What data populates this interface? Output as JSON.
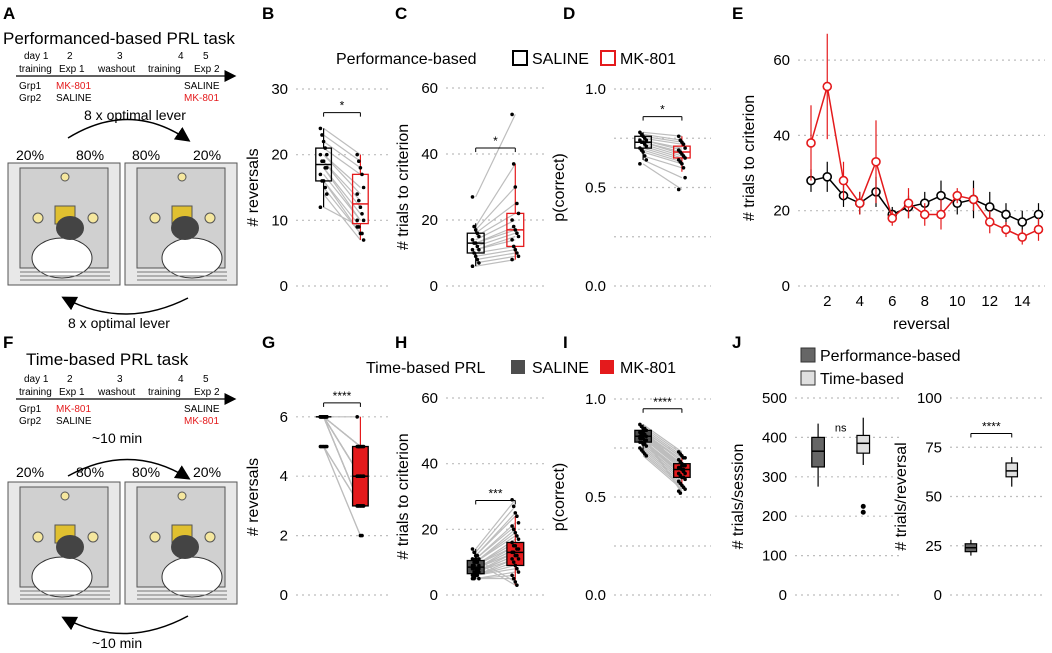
{
  "figure": {
    "panel_letters": [
      "A",
      "B",
      "C",
      "D",
      "E",
      "F",
      "G",
      "H",
      "I",
      "J"
    ],
    "panelA": {
      "title": "Performanced-based PRL task",
      "days": [
        "day 1",
        "2",
        "3",
        "4",
        "5"
      ],
      "phases": [
        "training",
        "Exp 1",
        "washout",
        "training",
        "Exp 2"
      ],
      "grp1": "Grp1",
      "grp2": "Grp2",
      "grp1_exp1": "MK-801",
      "grp2_exp1": "SALINE",
      "grp1_exp2": "SALINE",
      "grp2_exp2": "MK-801",
      "arrow_top": "8 x optimal lever",
      "arrow_bottom": "8 x optimal lever",
      "pct": [
        "20%",
        "80%",
        "80%",
        "20%"
      ]
    },
    "panelF": {
      "title": "Time-based PRL task",
      "days": [
        "day 1",
        "2",
        "3",
        "4",
        "5"
      ],
      "phases": [
        "training",
        "Exp 1",
        "washout",
        "training",
        "Exp 2"
      ],
      "grp1": "Grp1",
      "grp2": "Grp2",
      "grp1_exp1": "MK-801",
      "grp2_exp1": "SALINE",
      "grp1_exp2": "SALINE",
      "grp2_exp2": "MK-801",
      "arrow_top": "~10 min",
      "arrow_bottom": "~10 min",
      "pct": [
        "20%",
        "80%",
        "80%",
        "20%"
      ]
    },
    "legend_top": {
      "title": "Performance-based",
      "saline": "SALINE",
      "mk": "MK-801"
    },
    "legend_bottom": {
      "title": "Time-based PRL",
      "saline": "SALINE",
      "mk": "MK-801"
    },
    "legend_J": {
      "perf": "Performance-based",
      "time": "Time-based"
    }
  },
  "colors": {
    "saline": "#000000",
    "mk": "#e41a1c",
    "saline_fill": "#4d4d4d",
    "mk_fill": "#e41a1c",
    "grid": "#bdbdbd",
    "pairline": "#bdbdbd",
    "J_perf": "#666666",
    "J_time": "#e0e0e0"
  },
  "chart_data": [
    {
      "id": "B",
      "type": "box",
      "ylabel": "# reversals",
      "ylim": [
        0,
        30
      ],
      "yticks": [
        0,
        10,
        20,
        30
      ],
      "sig": "*",
      "filled": false,
      "saline": [
        24,
        23,
        22,
        21,
        20,
        20,
        19,
        19,
        18,
        18,
        17,
        16,
        16,
        15,
        14,
        12
      ],
      "mk": [
        20,
        19,
        18,
        17,
        15,
        14,
        13,
        12,
        11,
        10,
        10,
        9,
        8,
        8,
        7,
        9
      ],
      "box_saline": {
        "min": 12,
        "q1": 16,
        "median": 18.5,
        "q3": 21,
        "max": 24
      },
      "box_mk": {
        "min": 7,
        "q1": 9.5,
        "median": 12.5,
        "q3": 17,
        "max": 20
      }
    },
    {
      "id": "C",
      "type": "box",
      "ylabel": "# trials to criterion",
      "ylim": [
        0,
        60
      ],
      "yticks": [
        0,
        20,
        40,
        60
      ],
      "sig": "*",
      "filled": false,
      "saline": [
        27,
        18,
        17,
        16,
        15,
        14,
        13,
        13,
        12,
        11,
        11,
        10,
        9,
        8,
        7,
        6
      ],
      "mk": [
        52,
        37,
        30,
        25,
        22,
        20,
        18,
        17,
        16,
        15,
        14,
        12,
        11,
        10,
        9,
        8
      ],
      "box_saline": {
        "min": 6,
        "q1": 10,
        "median": 13,
        "q3": 16,
        "max": 19
      },
      "box_mk": {
        "min": 8,
        "q1": 12,
        "median": 17,
        "q3": 22,
        "max": 37
      }
    },
    {
      "id": "D",
      "type": "box",
      "ylabel": "p(correct)",
      "ylim": [
        0,
        1
      ],
      "yticks": [
        0.0,
        0.25,
        0.5,
        0.75,
        1.0
      ],
      "yticklabels": [
        "0.0",
        "",
        "0.5",
        "",
        "1.0"
      ],
      "sig": "*",
      "filled": false,
      "saline": [
        0.78,
        0.77,
        0.76,
        0.75,
        0.74,
        0.74,
        0.73,
        0.73,
        0.72,
        0.71,
        0.7,
        0.69,
        0.68,
        0.66,
        0.64,
        0.62
      ],
      "mk": [
        0.76,
        0.74,
        0.73,
        0.72,
        0.7,
        0.69,
        0.68,
        0.67,
        0.66,
        0.65,
        0.64,
        0.63,
        0.62,
        0.6,
        0.55,
        0.49
      ],
      "box_saline": {
        "min": 0.64,
        "q1": 0.7,
        "median": 0.73,
        "q3": 0.76,
        "max": 0.78
      },
      "box_mk": {
        "min": 0.58,
        "q1": 0.65,
        "median": 0.68,
        "q3": 0.71,
        "max": 0.76
      }
    },
    {
      "id": "E",
      "type": "line",
      "xlabel": "reversal",
      "ylabel": "# trials to criterion",
      "ylim": [
        0,
        68
      ],
      "yticks": [
        0,
        20,
        40,
        60
      ],
      "x": [
        1,
        2,
        3,
        4,
        5,
        6,
        7,
        8,
        9,
        10,
        11,
        12,
        13,
        14,
        15
      ],
      "xticks": [
        2,
        4,
        6,
        8,
        10,
        12,
        14
      ],
      "series": [
        {
          "name": "SALINE",
          "values": [
            28,
            29,
            24,
            22,
            25,
            19,
            21,
            22,
            24,
            22,
            23,
            21,
            19,
            17,
            19
          ],
          "err": [
            3,
            4,
            3,
            3,
            4,
            2,
            3,
            3,
            4,
            3,
            5,
            4,
            3,
            3,
            3
          ]
        },
        {
          "name": "MK-801",
          "values": [
            38,
            53,
            28,
            22,
            33,
            18,
            22,
            19,
            19,
            24,
            23,
            17,
            15,
            13,
            15
          ],
          "err": [
            10,
            14,
            5,
            3,
            11,
            2,
            4,
            3,
            4,
            2,
            3,
            3,
            2,
            2,
            3
          ]
        }
      ]
    },
    {
      "id": "G",
      "type": "box",
      "ylabel": "# reversals",
      "ylim": [
        0,
        6.6
      ],
      "yticks": [
        0,
        2,
        4,
        6
      ],
      "sig": "****",
      "filled": true,
      "saline": [
        6,
        6,
        6,
        6,
        6,
        6,
        6,
        6,
        6,
        6,
        6,
        6,
        6,
        6,
        6,
        6,
        6,
        6,
        6,
        6,
        6,
        6,
        6,
        6,
        5,
        5,
        5,
        5,
        5
      ],
      "mk": [
        6,
        5,
        5,
        5,
        5,
        5,
        5,
        4,
        4,
        4,
        4,
        4,
        4,
        4,
        4,
        4,
        4,
        3,
        3,
        3,
        3,
        3,
        3,
        3,
        3,
        3,
        3,
        2,
        2
      ],
      "box_saline": {
        "min": 6,
        "q1": 6,
        "median": 6,
        "q3": 6,
        "max": 6
      },
      "box_mk": {
        "min": 3,
        "q1": 3,
        "median": 4,
        "q3": 5,
        "max": 6
      }
    },
    {
      "id": "H",
      "type": "box",
      "ylabel": "# trials to criterion",
      "ylim": [
        0,
        60
      ],
      "yticks": [
        0,
        20,
        40,
        60
      ],
      "sig": "***",
      "filled": true,
      "saline": [
        14,
        13,
        12,
        12,
        11,
        11,
        10,
        10,
        10,
        9,
        9,
        9,
        8,
        8,
        8,
        8,
        7,
        7,
        7,
        7,
        6,
        6,
        6,
        6,
        5,
        5,
        5,
        11,
        10
      ],
      "mk": [
        29,
        27,
        25,
        24,
        22,
        21,
        20,
        19,
        18,
        17,
        16,
        15,
        15,
        14,
        14,
        13,
        13,
        12,
        12,
        11,
        11,
        10,
        9,
        8,
        7,
        6,
        5,
        4,
        3
      ],
      "box_saline": {
        "min": 5,
        "q1": 6.5,
        "median": 8.5,
        "q3": 10.5,
        "max": 14
      },
      "box_mk": {
        "min": 3,
        "q1": 9,
        "median": 13,
        "q3": 16,
        "max": 24
      }
    },
    {
      "id": "I",
      "type": "box",
      "ylabel": "p(correct)",
      "ylim": [
        0,
        1
      ],
      "yticks": [
        0.0,
        0.25,
        0.5,
        0.75,
        1.0
      ],
      "yticklabels": [
        "0.0",
        "",
        "0.5",
        "",
        "1.0"
      ],
      "sig": "****",
      "filled": true,
      "saline": [
        0.87,
        0.86,
        0.85,
        0.84,
        0.84,
        0.83,
        0.83,
        0.82,
        0.82,
        0.81,
        0.81,
        0.8,
        0.8,
        0.79,
        0.79,
        0.78,
        0.78,
        0.77,
        0.77,
        0.76,
        0.75,
        0.74,
        0.73,
        0.72,
        0.71,
        0.8,
        0.82,
        0.83,
        0.85
      ],
      "mk": [
        0.73,
        0.72,
        0.71,
        0.7,
        0.7,
        0.69,
        0.68,
        0.67,
        0.66,
        0.66,
        0.65,
        0.65,
        0.64,
        0.63,
        0.62,
        0.62,
        0.61,
        0.6,
        0.6,
        0.59,
        0.58,
        0.57,
        0.56,
        0.55,
        0.54,
        0.53,
        0.52,
        0.66,
        0.64
      ],
      "box_saline": {
        "min": 0.74,
        "q1": 0.78,
        "median": 0.81,
        "q3": 0.84,
        "max": 0.87
      },
      "box_mk": {
        "min": 0.55,
        "q1": 0.6,
        "median": 0.64,
        "q3": 0.67,
        "max": 0.72
      }
    },
    {
      "id": "J1",
      "type": "box",
      "ylabel": "# trials/session",
      "ylim": [
        0,
        500
      ],
      "yticks": [
        0,
        100,
        200,
        300,
        400,
        500
      ],
      "sig": "ns",
      "box_perf": {
        "min": 275,
        "q1": 325,
        "median": 365,
        "q3": 400,
        "max": 435
      },
      "box_time": {
        "min": 330,
        "q1": 360,
        "median": 385,
        "q3": 405,
        "max": 450,
        "outliers": [
          225,
          210
        ]
      }
    },
    {
      "id": "J2",
      "type": "box",
      "ylabel": "# trials/reversal",
      "ylim": [
        0,
        100
      ],
      "yticks": [
        0,
        25,
        50,
        75,
        100
      ],
      "sig": "****",
      "box_perf": {
        "min": 20,
        "q1": 22,
        "median": 24,
        "q3": 26,
        "max": 28
      },
      "box_time": {
        "min": 55,
        "q1": 60,
        "median": 63,
        "q3": 67,
        "max": 70
      }
    }
  ]
}
